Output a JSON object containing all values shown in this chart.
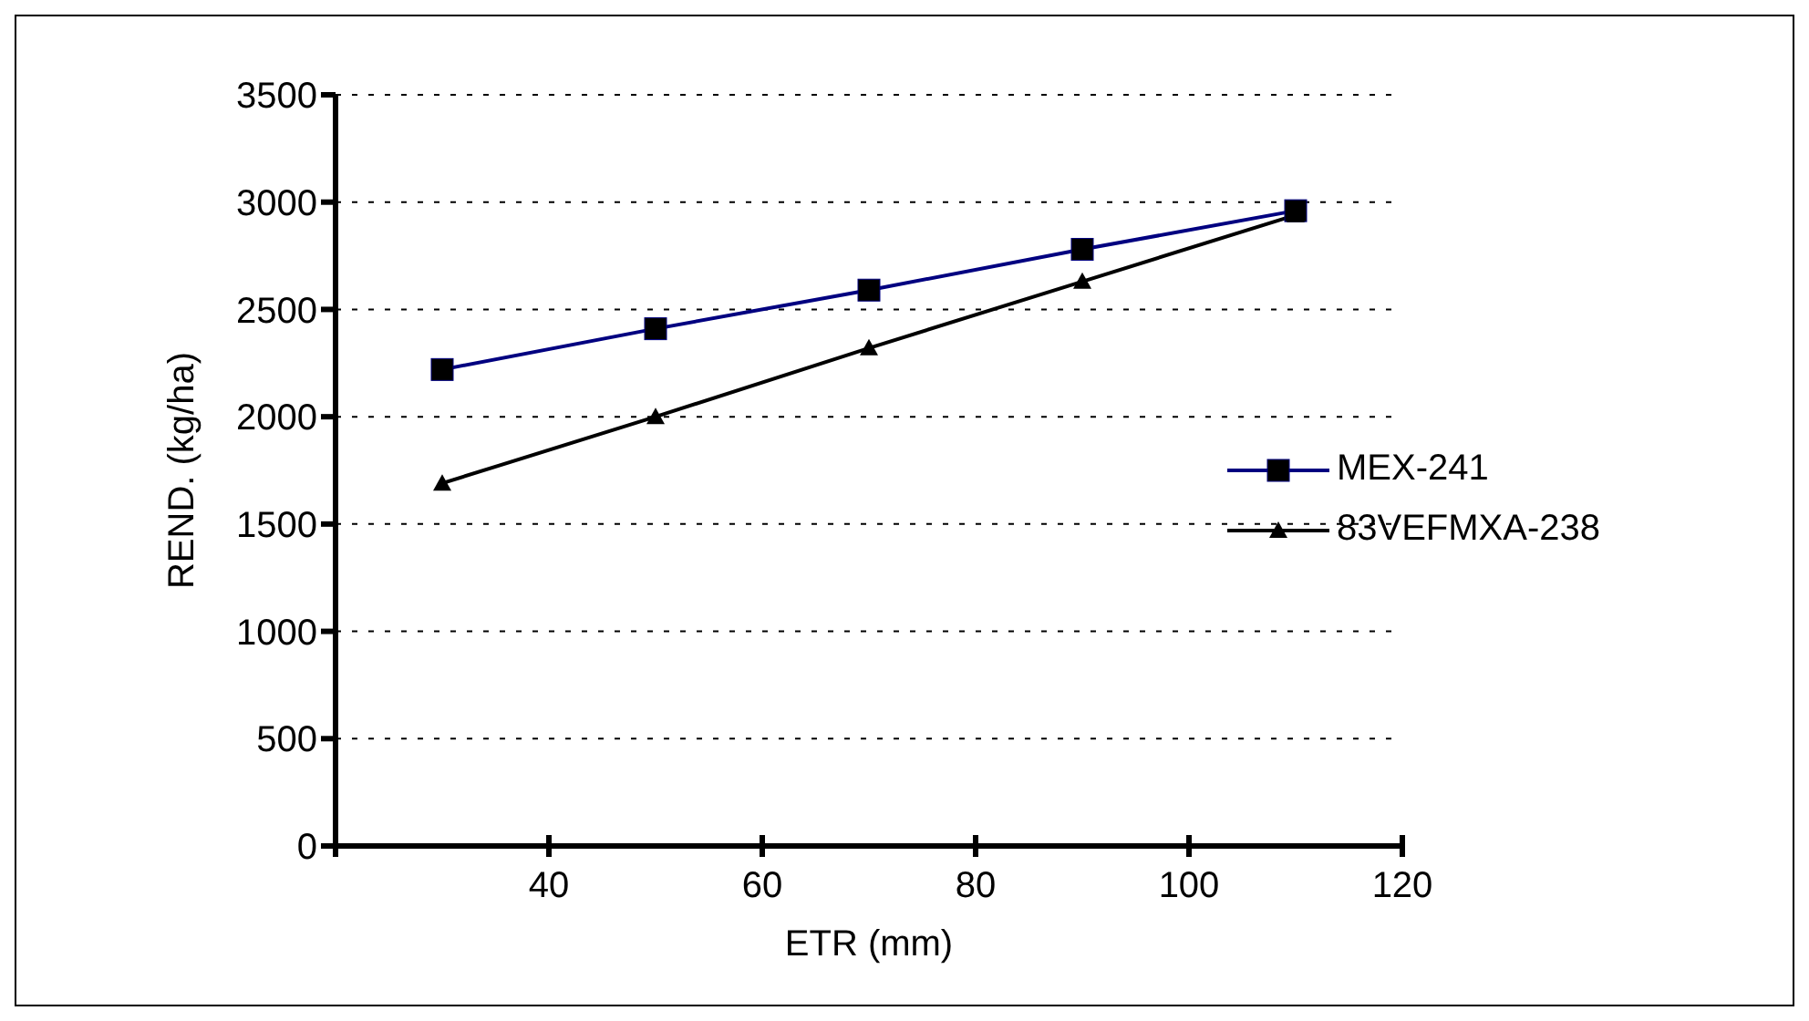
{
  "chart_data": {
    "type": "line",
    "xlabel": "ETR (mm)",
    "ylabel": "REND. (kg/ha)",
    "x": [
      30,
      50,
      70,
      90,
      110
    ],
    "series": [
      {
        "name": "MEX-241",
        "color": "#000080",
        "values": [
          2220,
          2410,
          2590,
          2780,
          2960
        ],
        "marker": "square"
      },
      {
        "name": "83VEFMXA-238",
        "color": "#000000",
        "values": [
          1690,
          2000,
          2320,
          2630,
          2940
        ],
        "marker": "triangle"
      }
    ],
    "xlim": [
      20,
      120
    ],
    "xticks": [
      {
        "value": 20,
        "label": null
      },
      40,
      60,
      80,
      100,
      120
    ],
    "ylim": [
      0,
      3500
    ],
    "yticks": [
      0,
      500,
      1000,
      1500,
      2000,
      2500,
      3000,
      3500
    ],
    "grid": "y",
    "legend": "right"
  }
}
